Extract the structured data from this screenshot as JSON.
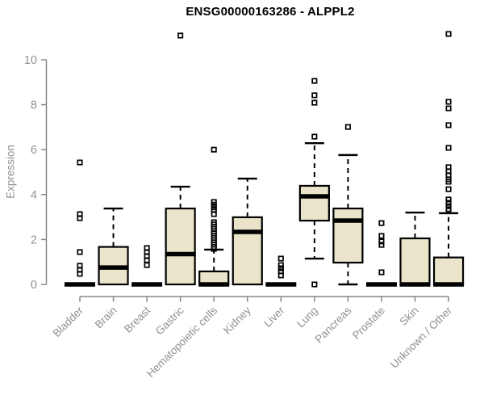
{
  "page": {
    "background": "#ffffff"
  },
  "chart_data": {
    "type": "boxplot",
    "title": "ENSG00000163286 - ALPPL2",
    "ylabel": "Expression",
    "xlabel": "",
    "ylim": [
      0,
      11.3
    ],
    "yticks": [
      0,
      2,
      4,
      6,
      8,
      10
    ],
    "grid": false,
    "legend": "none",
    "colors": {
      "box_fill": "#EAE4CB",
      "box_border": "#000000",
      "median": "#000000",
      "whisker": "#000000",
      "outlier": "#000000",
      "axis": "#878787",
      "tick_label": "#919191",
      "title": "#000000"
    },
    "categories": [
      "Bladder",
      "Brain",
      "Breast",
      "Gastric",
      "Hematopoietic cells",
      "Kidney",
      "Liver",
      "Lung",
      "Pancreas",
      "Prostate",
      "Skin",
      "Unknown / Other"
    ],
    "boxes": [
      {
        "category": "Bladder",
        "whisker_low": 0,
        "q1": 0,
        "median": 0,
        "q3": 0,
        "whisker_high": 0,
        "outliers": [
          5.43,
          3.13,
          2.95,
          1.44,
          0.83,
          0.65,
          0.47
        ]
      },
      {
        "category": "Brain",
        "whisker_low": 0,
        "q1": 0,
        "median": 0.75,
        "q3": 1.67,
        "whisker_high": 3.38,
        "outliers": []
      },
      {
        "category": "Breast",
        "whisker_low": 0,
        "q1": 0,
        "median": 0,
        "q3": 0,
        "whisker_high": 0,
        "outliers": [
          1.62,
          1.44,
          1.26,
          1.08,
          0.86
        ]
      },
      {
        "category": "Gastric",
        "whisker_low": 0,
        "q1": 0,
        "median": 1.35,
        "q3": 3.38,
        "whisker_high": 4.35,
        "outliers": [
          11.08
        ]
      },
      {
        "category": "Hematopoietic cells",
        "whisker_low": 0,
        "q1": 0,
        "median": 0,
        "q3": 0.58,
        "whisker_high": 1.55,
        "outliers": [
          6.0,
          3.67,
          3.55,
          3.43,
          3.31,
          3.13,
          2.77,
          2.67,
          2.57,
          2.47,
          2.37,
          2.27,
          2.17,
          2.07,
          1.97,
          1.87,
          1.77,
          1.67,
          1.58
        ]
      },
      {
        "category": "Kidney",
        "whisker_low": 0,
        "q1": 0,
        "median": 2.34,
        "q3": 2.99,
        "whisker_high": 4.71,
        "outliers": []
      },
      {
        "category": "Liver",
        "whisker_low": 0,
        "q1": 0,
        "median": 0,
        "q3": 0,
        "whisker_high": 0,
        "outliers": [
          1.15,
          0.86,
          0.72,
          0.58,
          0.4
        ]
      },
      {
        "category": "Lung",
        "whisker_low": 1.15,
        "q1": 2.84,
        "median": 3.92,
        "q3": 4.39,
        "whisker_high": 6.29,
        "outliers": [
          9.06,
          8.42,
          8.09,
          6.58,
          0.0
        ]
      },
      {
        "category": "Pancreas",
        "whisker_low": 0,
        "q1": 0.97,
        "median": 2.84,
        "q3": 3.38,
        "whisker_high": 5.76,
        "outliers": [
          7.01
        ]
      },
      {
        "category": "Prostate",
        "whisker_low": 0,
        "q1": 0,
        "median": 0,
        "q3": 0,
        "whisker_high": 0,
        "outliers": [
          2.73,
          2.16,
          1.91,
          1.76,
          0.54
        ]
      },
      {
        "category": "Skin",
        "whisker_low": 0,
        "q1": 0,
        "median": 0,
        "q3": 2.05,
        "whisker_high": 3.2,
        "outliers": []
      },
      {
        "category": "Unknown / Other",
        "whisker_low": 0,
        "q1": 0,
        "median": 0,
        "q3": 1.2,
        "whisker_high": 3.17,
        "outliers": [
          11.15,
          8.13,
          7.84,
          7.09,
          6.08,
          5.22,
          5.04,
          4.86,
          4.68,
          4.57,
          4.24,
          3.78,
          3.63,
          3.48,
          3.35
        ]
      }
    ]
  }
}
